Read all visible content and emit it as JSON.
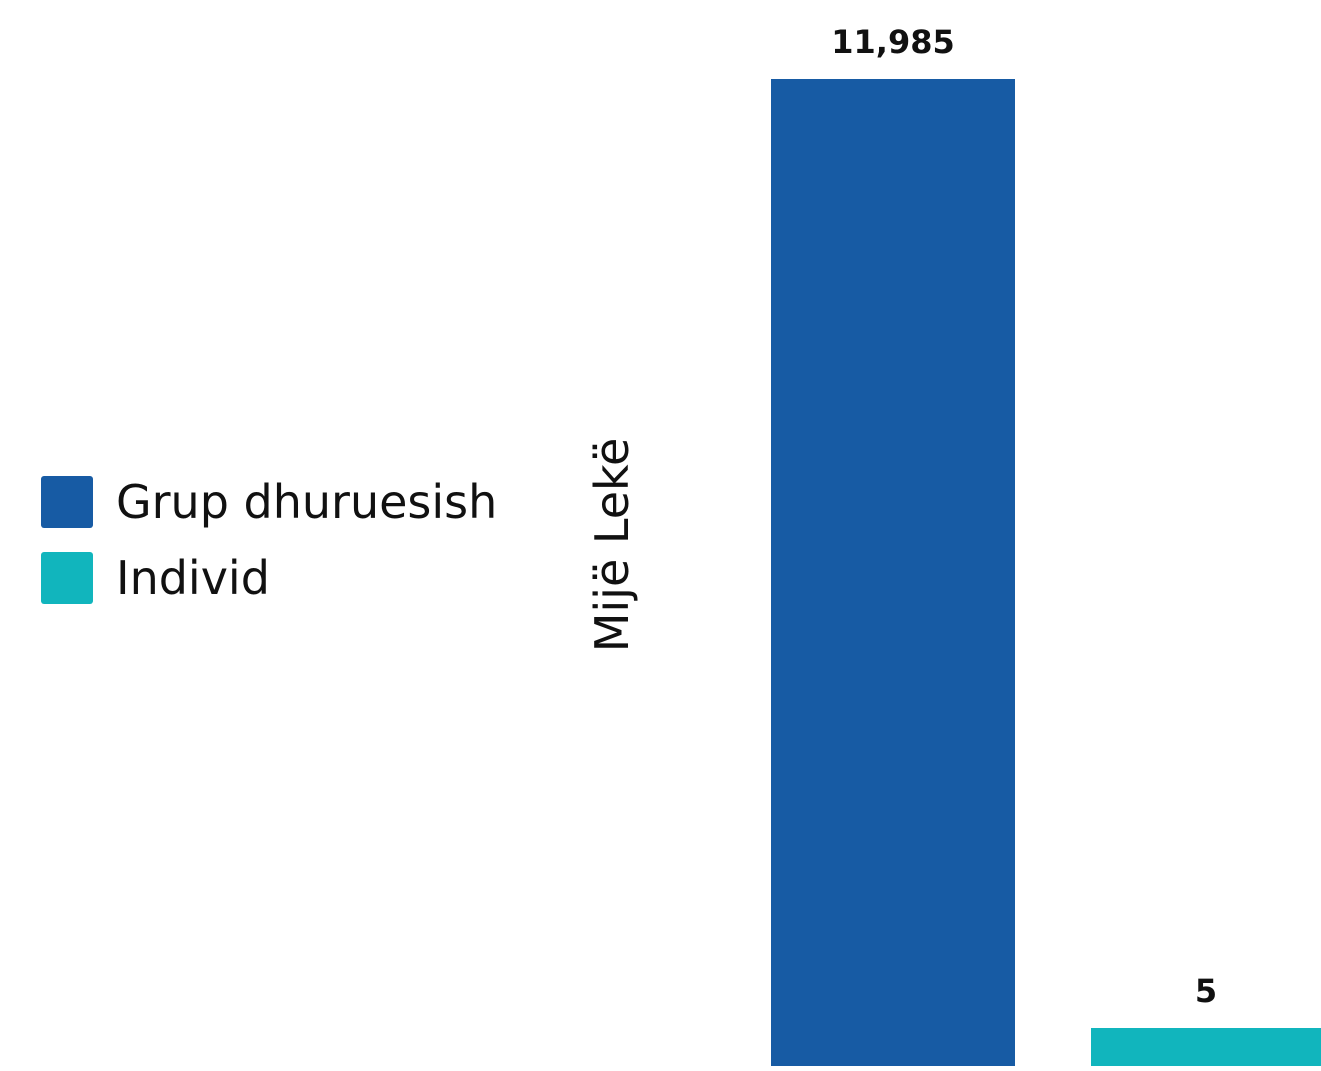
{
  "chart_data": {
    "type": "bar",
    "ylabel": "Mijë Lekë",
    "legend": {
      "placement": "left",
      "entries": [
        {
          "name": "Grup dhuruesish",
          "color": "#175ba4"
        },
        {
          "name": "Individ",
          "color": "#11b5bd"
        }
      ]
    },
    "series": [
      {
        "name": "Grup dhuruesish",
        "value": 11985,
        "value_label": "11,985",
        "color": "#175ba4"
      },
      {
        "name": "Individ",
        "value": 5,
        "value_label": "5",
        "color": "#11b5bd"
      }
    ],
    "ylim": [
      0,
      11985
    ],
    "grid": false
  }
}
